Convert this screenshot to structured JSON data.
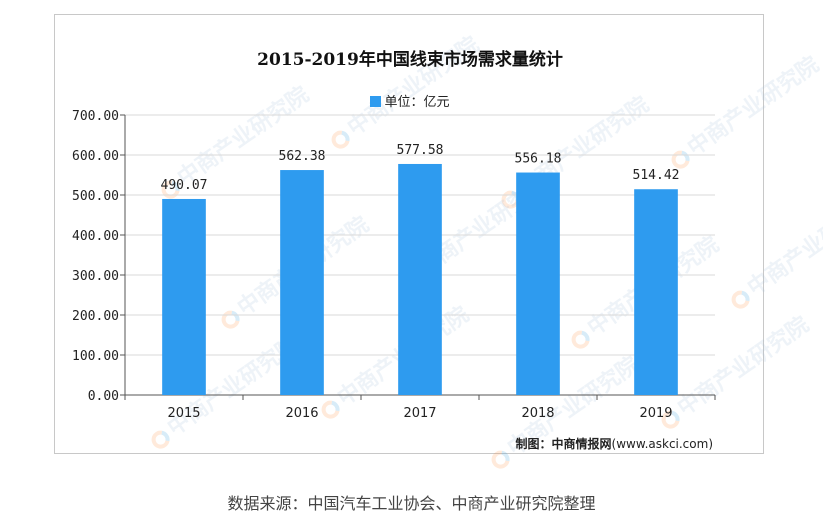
{
  "chart_data": {
    "type": "bar",
    "title": "2015-2019年中国线束市场需求量统计",
    "legend": {
      "label": "单位：亿元",
      "placement": "top-center"
    },
    "categories": [
      "2015",
      "2016",
      "2017",
      "2018",
      "2019"
    ],
    "values": [
      490.07,
      562.38,
      577.58,
      556.18,
      514.42
    ],
    "value_labels": [
      "490.07",
      "562.38",
      "577.58",
      "556.18",
      "514.42"
    ],
    "ylim": [
      0,
      700
    ],
    "yticks": [
      "0.00",
      "100.00",
      "200.00",
      "300.00",
      "400.00",
      "500.00",
      "600.00",
      "700.00"
    ],
    "ytick_values": [
      0,
      100,
      200,
      300,
      400,
      500,
      600,
      700
    ],
    "grid": true,
    "bar_color": "#2e9bef",
    "xlabel": "",
    "ylabel": ""
  },
  "credit": {
    "prefix": "制图：中商情报网",
    "suffix": "(www.askci.com)"
  },
  "source": "数据来源：中国汽车工业协会、中商产业研究院整理",
  "watermark": "中商产业研究院"
}
